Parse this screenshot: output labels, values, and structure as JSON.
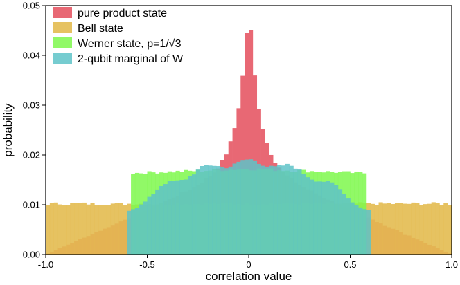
{
  "chart_data": {
    "type": "histogram",
    "xlabel": "correlation value",
    "ylabel": "probability",
    "xlim": [
      -1.0,
      1.0
    ],
    "ylim": [
      0.0,
      0.05
    ],
    "x_ticks": [
      -1.0,
      -0.5,
      0.0,
      0.5,
      1.0
    ],
    "x_tick_labels": [
      "-1.0",
      "-0.5",
      "0",
      "0.5",
      "1.0"
    ],
    "y_ticks": [
      0.0,
      0.01,
      0.02,
      0.03,
      0.04,
      0.05
    ],
    "y_tick_labels": [
      "0.00",
      "0.01",
      "0.02",
      "0.03",
      "0.04",
      "0.05"
    ],
    "bin_width": 0.02,
    "legend_position": "top-left",
    "series": [
      {
        "name": "pure product state",
        "label_main": "pure product state",
        "label_suffix": "",
        "color": "#e86874",
        "opacity": 1.0,
        "x_range": [
          -1.0,
          1.0
        ],
        "shape": "product",
        "peak": 0.049
      },
      {
        "name": "Bell state",
        "label_main": "Bell state",
        "label_suffix": "",
        "color": "#e3bb50",
        "opacity": 0.9,
        "x_range": [
          -1.0,
          1.0
        ],
        "shape": "uniform",
        "level": 0.0102
      },
      {
        "name": "Werner state, p=1/√3",
        "label_main": "Werner state,   p=1/",
        "label_suffix": "√3",
        "color": "#7ef84c",
        "opacity": 0.85,
        "x_range": [
          -0.58,
          0.58
        ],
        "shape": "werner",
        "level": 0.0172
      },
      {
        "name": "2-qubit marginal of W",
        "label_main": "2-qubit marginal of W",
        "label_suffix": "",
        "color": "#5ec3c8",
        "opacity": 0.85,
        "x_range": [
          -0.6,
          0.6
        ],
        "shape": "marginal",
        "peak": 0.0185
      }
    ]
  }
}
